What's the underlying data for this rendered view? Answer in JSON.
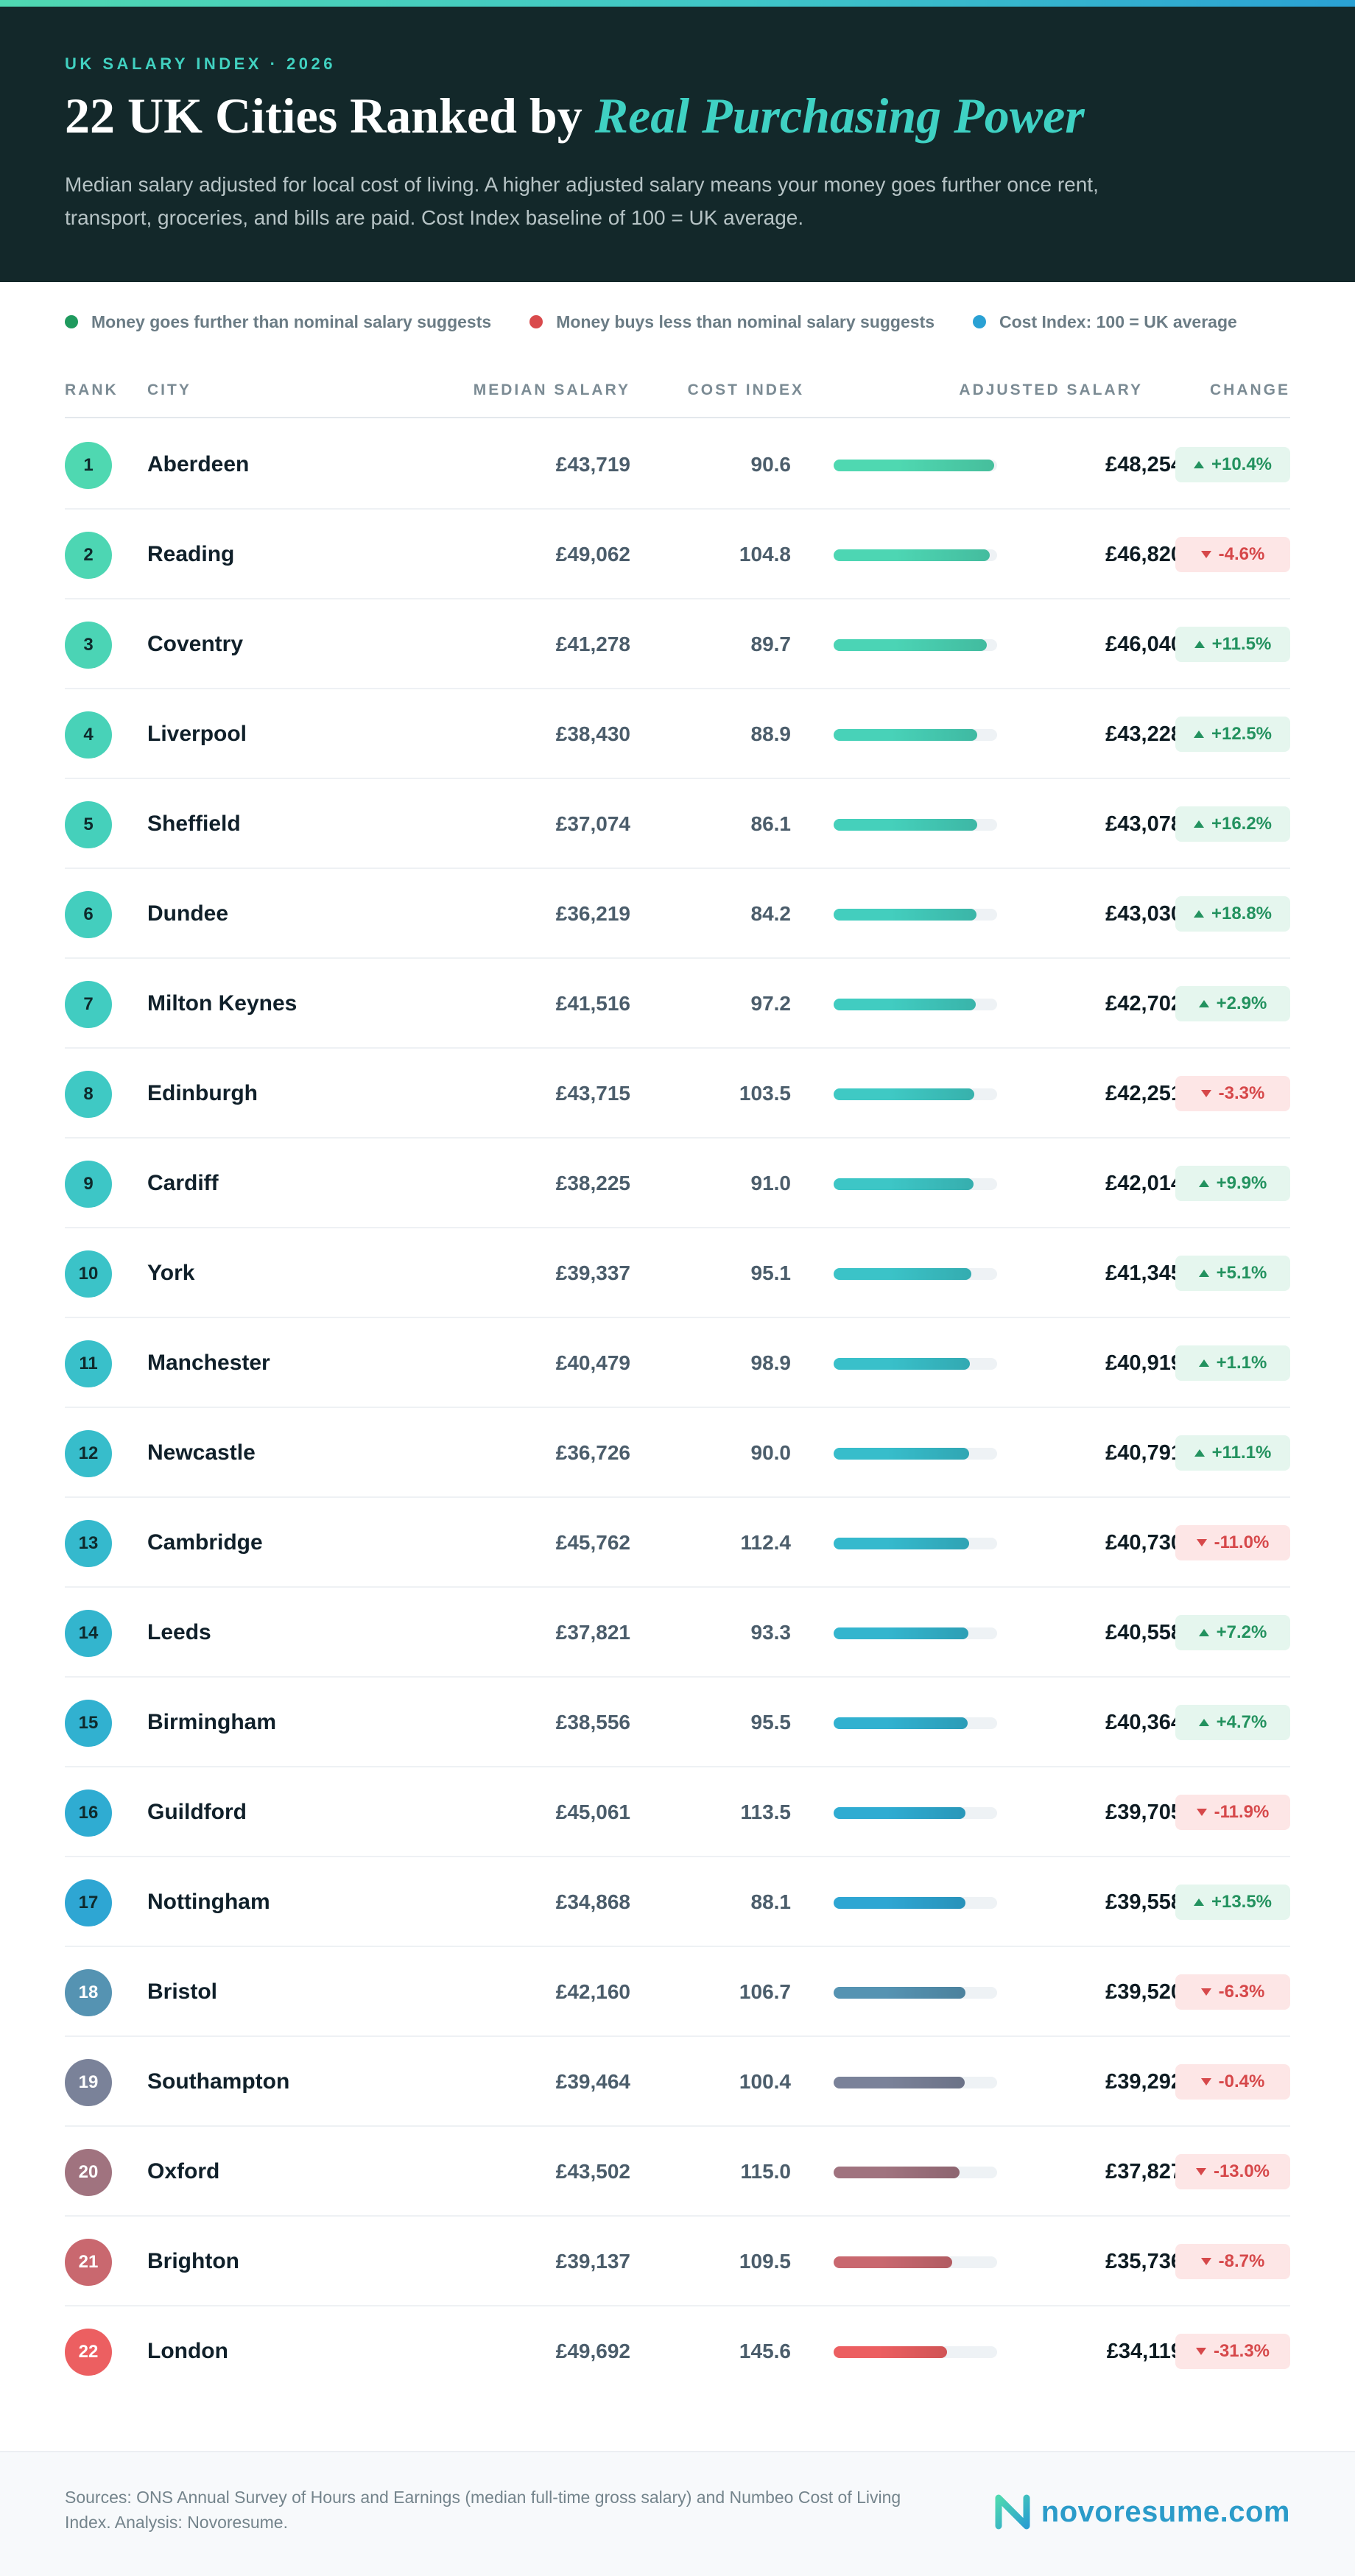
{
  "header": {
    "eyebrow": "UK SALARY INDEX · 2026",
    "title_main": "22 UK Cities Ranked by ",
    "title_emphasis": "Real Purchasing Power",
    "subtitle": "Median salary adjusted for local cost of living. A higher adjusted salary means your money goes further once rent, transport, groceries, and bills are paid. Cost Index baseline of 100 = UK average."
  },
  "legend": [
    {
      "label": "Money goes further than nominal salary suggests",
      "color": "#1f9a5e"
    },
    {
      "label": "Money buys less than nominal salary suggests",
      "color": "#d94a4c"
    },
    {
      "label": "Cost Index: 100 = UK average",
      "color": "#2aa1d4"
    }
  ],
  "columns": {
    "rank": "RANK",
    "city": "CITY",
    "median": "MEDIAN SALARY",
    "cost": "COST INDEX",
    "adjusted": "ADJUSTED SALARY",
    "change": "CHANGE"
  },
  "chart_data": {
    "type": "table",
    "bar_scale_max": 48254,
    "rows": [
      {
        "rank": "1",
        "city": "Aberdeen",
        "median": "£43,719",
        "cost": "90.6",
        "adjusted": "£48,254",
        "adjusted_value": 48254,
        "change": "+10.4%",
        "direction": "up",
        "color": "#4fd8b1"
      },
      {
        "rank": "2",
        "city": "Reading",
        "median": "£49,062",
        "cost": "104.8",
        "adjusted": "£46,820",
        "adjusted_value": 46820,
        "change": "-4.6%",
        "direction": "down",
        "color": "#4dd6b3"
      },
      {
        "rank": "3",
        "city": "Coventry",
        "median": "£41,278",
        "cost": "89.7",
        "adjusted": "£46,040",
        "adjusted_value": 46040,
        "change": "+11.5%",
        "direction": "up",
        "color": "#4bd4b5"
      },
      {
        "rank": "4",
        "city": "Liverpool",
        "median": "£38,430",
        "cost": "88.9",
        "adjusted": "£43,228",
        "adjusted_value": 43228,
        "change": "+12.5%",
        "direction": "up",
        "color": "#48d2b8"
      },
      {
        "rank": "5",
        "city": "Sheffield",
        "median": "£37,074",
        "cost": "86.1",
        "adjusted": "£43,078",
        "adjusted_value": 43078,
        "change": "+16.2%",
        "direction": "up",
        "color": "#45d0bb"
      },
      {
        "rank": "6",
        "city": "Dundee",
        "median": "£36,219",
        "cost": "84.2",
        "adjusted": "£43,030",
        "adjusted_value": 43030,
        "change": "+18.8%",
        "direction": "up",
        "color": "#43cebe"
      },
      {
        "rank": "7",
        "city": "Milton Keynes",
        "median": "£41,516",
        "cost": "97.2",
        "adjusted": "£42,702",
        "adjusted_value": 42702,
        "change": "+2.9%",
        "direction": "up",
        "color": "#41ccc1"
      },
      {
        "rank": "8",
        "city": "Edinburgh",
        "median": "£43,715",
        "cost": "103.5",
        "adjusted": "£42,251",
        "adjusted_value": 42251,
        "change": "-3.3%",
        "direction": "down",
        "color": "#3fc9c4"
      },
      {
        "rank": "9",
        "city": "Cardiff",
        "median": "£38,225",
        "cost": "91.0",
        "adjusted": "£42,014",
        "adjusted_value": 42014,
        "change": "+9.9%",
        "direction": "up",
        "color": "#3dc6c6"
      },
      {
        "rank": "10",
        "city": "York",
        "median": "£39,337",
        "cost": "95.1",
        "adjusted": "£41,345",
        "adjusted_value": 41345,
        "change": "+5.1%",
        "direction": "up",
        "color": "#3bc3c8"
      },
      {
        "rank": "11",
        "city": "Manchester",
        "median": "£40,479",
        "cost": "98.9",
        "adjusted": "£40,919",
        "adjusted_value": 40919,
        "change": "+1.1%",
        "direction": "up",
        "color": "#39c0ca"
      },
      {
        "rank": "12",
        "city": "Newcastle",
        "median": "£36,726",
        "cost": "90.0",
        "adjusted": "£40,791",
        "adjusted_value": 40791,
        "change": "+11.1%",
        "direction": "up",
        "color": "#37bdcb"
      },
      {
        "rank": "13",
        "city": "Cambridge",
        "median": "£45,762",
        "cost": "112.4",
        "adjusted": "£40,730",
        "adjusted_value": 40730,
        "change": "-11.0%",
        "direction": "down",
        "color": "#35b9cd"
      },
      {
        "rank": "14",
        "city": "Leeds",
        "median": "£37,821",
        "cost": "93.3",
        "adjusted": "£40,558",
        "adjusted_value": 40558,
        "change": "+7.2%",
        "direction": "up",
        "color": "#33b5ce"
      },
      {
        "rank": "15",
        "city": "Birmingham",
        "median": "£38,556",
        "cost": "95.5",
        "adjusted": "£40,364",
        "adjusted_value": 40364,
        "change": "+4.7%",
        "direction": "up",
        "color": "#31b1d0"
      },
      {
        "rank": "16",
        "city": "Guildford",
        "median": "£45,061",
        "cost": "113.5",
        "adjusted": "£39,705",
        "adjusted_value": 39705,
        "change": "-11.9%",
        "direction": "down",
        "color": "#2facd2"
      },
      {
        "rank": "17",
        "city": "Nottingham",
        "median": "£34,868",
        "cost": "88.1",
        "adjusted": "£39,558",
        "adjusted_value": 39558,
        "change": "+13.5%",
        "direction": "up",
        "color": "#2ea6d3"
      },
      {
        "rank": "18",
        "city": "Bristol",
        "median": "£42,160",
        "cost": "106.7",
        "adjusted": "£39,520",
        "adjusted_value": 39520,
        "change": "-6.3%",
        "direction": "down",
        "color": "#5593b2"
      },
      {
        "rank": "19",
        "city": "Southampton",
        "median": "£39,464",
        "cost": "100.4",
        "adjusted": "£39,292",
        "adjusted_value": 39292,
        "change": "-0.4%",
        "direction": "down",
        "color": "#7a8299"
      },
      {
        "rank": "20",
        "city": "Oxford",
        "median": "£43,502",
        "cost": "115.0",
        "adjusted": "£37,827",
        "adjusted_value": 37827,
        "change": "-13.0%",
        "direction": "down",
        "color": "#a0737f"
      },
      {
        "rank": "21",
        "city": "Brighton",
        "median": "£39,137",
        "cost": "109.5",
        "adjusted": "£35,736",
        "adjusted_value": 35736,
        "change": "-8.7%",
        "direction": "down",
        "color": "#c9686f"
      },
      {
        "rank": "22",
        "city": "London",
        "median": "£49,692",
        "cost": "145.6",
        "adjusted": "£34,119",
        "adjusted_value": 34119,
        "change": "-31.3%",
        "direction": "down",
        "color": "#ec5f61"
      }
    ]
  },
  "footer": {
    "sources": "Sources: ONS Annual Survey of Hours and Earnings (median full-time gross salary) and Numbeo Cost of Living Index. Analysis: Novoresume.",
    "brand": "novoresume.com",
    "brand_color": "#2b9bc9"
  }
}
